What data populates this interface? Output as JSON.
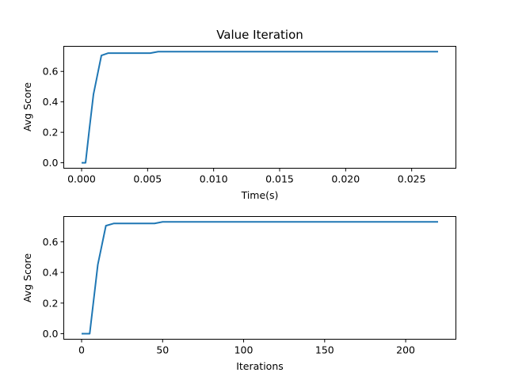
{
  "chart_data": [
    {
      "type": "line",
      "title": "Value Iteration",
      "xlabel": "Time(s)",
      "ylabel": "Avg Score",
      "xlim": [
        -0.00135,
        0.02835
      ],
      "ylim": [
        -0.036,
        0.765
      ],
      "xticks": [
        0.0,
        0.005,
        0.01,
        0.015,
        0.02,
        0.025
      ],
      "xtick_labels": [
        "0.000",
        "0.005",
        "0.010",
        "0.015",
        "0.020",
        "0.025"
      ],
      "yticks": [
        0.0,
        0.2,
        0.4,
        0.6
      ],
      "ytick_labels": [
        "0.0",
        "0.2",
        "0.4",
        "0.6"
      ],
      "grid": false,
      "legend": "none",
      "series": [
        {
          "color": "#1f77b4",
          "x": [
            0.0,
            0.0003,
            0.0006,
            0.0009,
            0.0015,
            0.002,
            0.003,
            0.0052,
            0.0058,
            0.01,
            0.015,
            0.02,
            0.027
          ],
          "y": [
            0.0,
            0.0,
            0.23,
            0.45,
            0.705,
            0.72,
            0.72,
            0.72,
            0.73,
            0.73,
            0.73,
            0.73,
            0.73
          ]
        }
      ]
    },
    {
      "type": "line",
      "title": "",
      "xlabel": "Iterations",
      "ylabel": "Avg Score",
      "xlim": [
        -11,
        231
      ],
      "ylim": [
        -0.036,
        0.765
      ],
      "xticks": [
        0,
        50,
        100,
        150,
        200
      ],
      "xtick_labels": [
        "0",
        "50",
        "100",
        "150",
        "200"
      ],
      "yticks": [
        0.0,
        0.2,
        0.4,
        0.6
      ],
      "ytick_labels": [
        "0.0",
        "0.2",
        "0.4",
        "0.6"
      ],
      "grid": false,
      "legend": "none",
      "series": [
        {
          "color": "#1f77b4",
          "x": [
            0,
            5,
            10,
            15,
            20,
            25,
            30,
            35,
            40,
            45,
            50,
            100,
            150,
            200,
            220
          ],
          "y": [
            0.0,
            0.0,
            0.45,
            0.705,
            0.72,
            0.72,
            0.72,
            0.72,
            0.72,
            0.72,
            0.73,
            0.73,
            0.73,
            0.73,
            0.73
          ]
        }
      ]
    }
  ]
}
